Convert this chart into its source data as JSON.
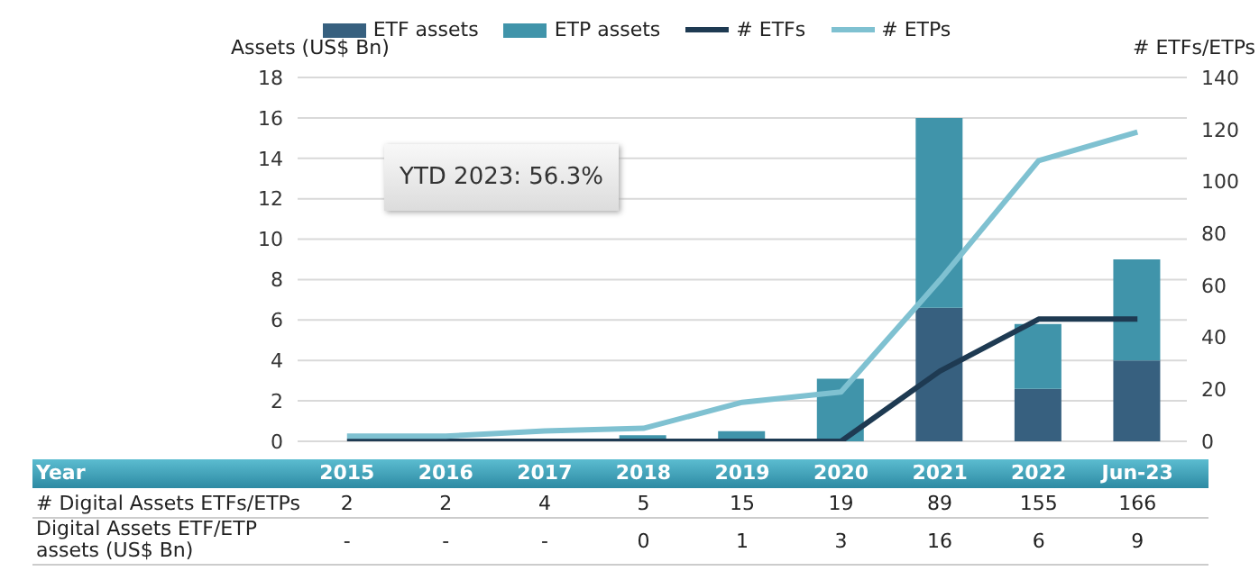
{
  "chart_data": {
    "type": "bar",
    "ylabel": "Assets (US$ Bn)",
    "y2label": "# ETFs/ETPs",
    "categories": [
      "2015",
      "2016",
      "2017",
      "2018",
      "2019",
      "2020",
      "2021",
      "2022",
      "Jun-23"
    ],
    "series": [
      {
        "name": "ETF assets",
        "color": "#37607f",
        "values": [
          0,
          0,
          0,
          0,
          0,
          0,
          6.6,
          2.6,
          4.0
        ]
      },
      {
        "name": "ETP assets",
        "color": "#4094aa",
        "values": [
          0,
          0,
          0,
          0.3,
          0.5,
          3.1,
          9.4,
          3.2,
          5.0
        ]
      },
      {
        "name": "# ETFs",
        "type": "line",
        "axis": "y2",
        "color": "#1e3a52",
        "values": [
          0,
          0,
          0,
          0,
          0,
          0,
          27,
          47,
          47
        ]
      },
      {
        "name": "# ETPs",
        "type": "line",
        "axis": "y2",
        "color": "#7fc1d1",
        "values": [
          2,
          2,
          4,
          5,
          15,
          19,
          62,
          108,
          119
        ]
      }
    ],
    "stacked": true,
    "ylim": [
      0,
      18
    ],
    "yticks": [
      0,
      2,
      4,
      6,
      8,
      10,
      12,
      14,
      16,
      18
    ],
    "y2lim": [
      0,
      140
    ],
    "y2ticks": [
      0,
      20,
      40,
      60,
      80,
      100,
      120,
      140
    ],
    "grid": "y",
    "legend": "top",
    "marker": "none",
    "line_style": "solid",
    "annotations": [
      "YTD 2023: 56.3%",
      "Year",
      "# Digital Assets ETFs/ETPs",
      "2",
      "2",
      "4",
      "5",
      "15",
      "19",
      "89",
      "155",
      "166",
      "Digital Assets ETF/ETP assets (US$ Bn)",
      "-",
      "-",
      "-",
      "0",
      "1",
      "3",
      "16",
      "6",
      "9"
    ]
  }
}
